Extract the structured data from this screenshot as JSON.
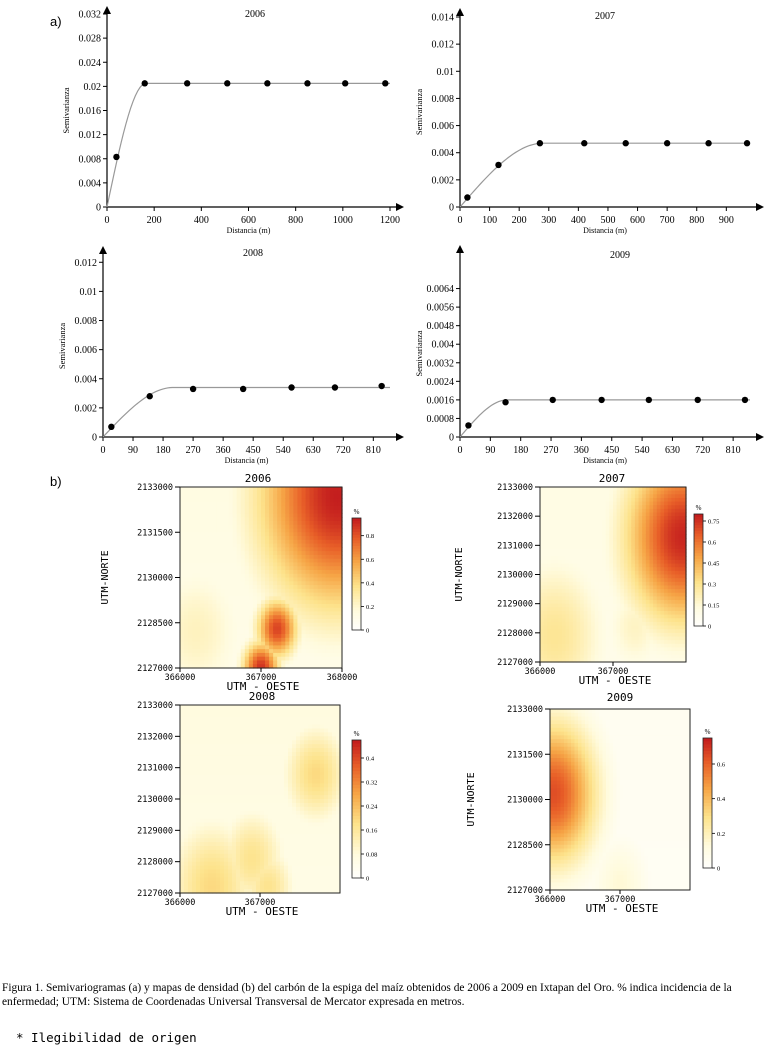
{
  "figure": {
    "panel_a": "a)",
    "panel_b": "b)",
    "caption": "Figura 1. Semivariogramas (a) y mapas de densidad (b) del carbón de la espiga del maíz obtenidos de 2006 a 2009 en Ixtapan del Oro. % indica incidencia de la enfermedad; UTM: Sistema de Coordenadas Universal Transversal de Mercator expresada en metros.",
    "note": "* Ilegibilidad de origen"
  },
  "chart_data": [
    {
      "type": "scatter",
      "title": "2006",
      "xlabel": "Distancia (m)",
      "ylabel": "Semivarianza",
      "xlim": [
        0,
        1200
      ],
      "ylim": [
        0,
        0.032
      ],
      "xticks": [
        "0",
        "200",
        "400",
        "600",
        "800",
        "1000",
        "1200"
      ],
      "yticks": [
        "0",
        "0.004",
        "0.008",
        "0.012",
        "0.016",
        "0.02",
        "0.024",
        "0.028",
        "0.032"
      ],
      "points": {
        "x": [
          40,
          160,
          340,
          510,
          680,
          850,
          1010,
          1180
        ],
        "y": [
          0.0083,
          0.0205,
          0.0205,
          0.0205,
          0.0205,
          0.0205,
          0.0205,
          0.0205
        ]
      },
      "model": {
        "nugget": 0,
        "sill": 0.0205,
        "range": 165
      }
    },
    {
      "type": "scatter",
      "title": "2007",
      "xlabel": "Distancia (m)",
      "ylabel": "Semivarianza",
      "xlim": [
        0,
        980
      ],
      "ylim": [
        0,
        0.014
      ],
      "xticks": [
        "0",
        "100",
        "200",
        "300",
        "400",
        "500",
        "600",
        "700",
        "800",
        "900"
      ],
      "yticks": [
        "0",
        "0.002",
        "0.004",
        "0.006",
        "0.008",
        "0.01",
        "0.012",
        "0.014"
      ],
      "points": {
        "x": [
          25,
          130,
          270,
          420,
          560,
          700,
          840,
          970
        ],
        "y": [
          0.0007,
          0.0031,
          0.0047,
          0.0047,
          0.0047,
          0.0047,
          0.0047,
          0.0047
        ]
      },
      "model": {
        "nugget": 0,
        "sill": 0.0047,
        "range": 280
      }
    },
    {
      "type": "scatter",
      "title": "2008",
      "xlabel": "Distancia (m)",
      "ylabel": "Semivarianza",
      "xlim": [
        0,
        860
      ],
      "ylim": [
        0,
        0.0125
      ],
      "xticks": [
        "0",
        "90",
        "180",
        "270",
        "360",
        "450",
        "540",
        "630",
        "720",
        "810"
      ],
      "yticks": [
        "0",
        "0.002",
        "0.004",
        "0.006",
        "0.008",
        "0.01",
        "0.012"
      ],
      "points": {
        "x": [
          25,
          140,
          270,
          420,
          565,
          695,
          835
        ],
        "y": [
          0.0007,
          0.0028,
          0.0033,
          0.0033,
          0.0034,
          0.0034,
          0.0035
        ]
      },
      "model": {
        "nugget": 0,
        "sill": 0.0034,
        "range": 210
      }
    },
    {
      "type": "scatter",
      "title": "2009",
      "xlabel": "Distancia (m)",
      "ylabel": "Semivarianza",
      "xlim": [
        0,
        860
      ],
      "ylim": [
        0,
        0.0072
      ],
      "xticks": [
        "0",
        "90",
        "180",
        "270",
        "360",
        "450",
        "540",
        "630",
        "720",
        "810"
      ],
      "yticks": [
        "0",
        "0.0008",
        "0.0016",
        "0.0024",
        "0.0032",
        "0.004",
        "0.0048",
        "0.0056",
        "0.0064"
      ],
      "points": {
        "x": [
          25,
          135,
          275,
          420,
          560,
          705,
          845
        ],
        "y": [
          0.0005,
          0.0015,
          0.0016,
          0.0016,
          0.0016,
          0.0016,
          0.0016
        ]
      },
      "model": {
        "nugget": 0,
        "sill": 0.0016,
        "range": 140
      }
    },
    {
      "type": "heatmap",
      "title": "2006",
      "xlabel": "UTM - OESTE",
      "ylabel": "UTM-NORTE",
      "xlim": [
        366000,
        368000
      ],
      "ylim": [
        2127000,
        2133000
      ],
      "xticks": [
        "366000",
        "367000",
        "368000"
      ],
      "yticks": [
        "2127000",
        "2128500",
        "2130000",
        "2131500",
        "2133000"
      ],
      "legend_title": "%",
      "legend_ticks": [
        "0",
        "0.2",
        "0.4",
        "0.6",
        "0.8"
      ],
      "legend_max": 0.95,
      "hotspots": [
        {
          "x": 367950,
          "y": 2132700,
          "value": 0.95,
          "spread": 0.35
        },
        {
          "x": 367000,
          "y": 2127000,
          "value": 0.9,
          "spread": 0.08
        },
        {
          "x": 367200,
          "y": 2128300,
          "value": 0.85,
          "spread": 0.09
        },
        {
          "x": 366200,
          "y": 2128200,
          "value": 0.25,
          "spread": 0.22
        }
      ],
      "background": 0.15
    },
    {
      "type": "heatmap",
      "title": "2007",
      "xlabel": "UTM - OESTE",
      "ylabel": "UTM-NORTE",
      "xlim": [
        366000,
        368000
      ],
      "ylim": [
        2127000,
        2133000
      ],
      "xticks": [
        "366000",
        "367000"
      ],
      "yticks": [
        "2127000",
        "2128000",
        "2129000",
        "2130000",
        "2131000",
        "2132000",
        "2133000"
      ],
      "legend_title": "%",
      "legend_ticks": [
        "0",
        "0.15",
        "0.3",
        "0.45",
        "0.6",
        "0.75"
      ],
      "legend_max": 0.8,
      "hotspots": [
        {
          "x": 367950,
          "y": 2131300,
          "value": 0.78,
          "spread": 0.28
        },
        {
          "x": 366200,
          "y": 2127900,
          "value": 0.3,
          "spread": 0.25
        },
        {
          "x": 367300,
          "y": 2128200,
          "value": 0.2,
          "spread": 0.15
        }
      ],
      "background": 0.12
    },
    {
      "type": "heatmap",
      "title": "2008",
      "xlabel": "UTM - OESTE",
      "ylabel": "",
      "xlim": [
        366000,
        368000
      ],
      "ylim": [
        2127000,
        2133000
      ],
      "xticks": [
        "366000",
        "367000"
      ],
      "yticks": [
        "2127000",
        "2128000",
        "2129000",
        "2130000",
        "2131000",
        "2132000",
        "2133000"
      ],
      "legend_title": "%",
      "legend_ticks": [
        "0",
        "0.08",
        "0.16",
        "0.24",
        "0.32",
        "0.4"
      ],
      "legend_max": 0.46,
      "hotspots": [
        {
          "x": 367700,
          "y": 2130800,
          "value": 0.2,
          "spread": 0.15
        },
        {
          "x": 366900,
          "y": 2128100,
          "value": 0.18,
          "spread": 0.15
        },
        {
          "x": 366400,
          "y": 2127200,
          "value": 0.2,
          "spread": 0.2
        },
        {
          "x": 367100,
          "y": 2127200,
          "value": 0.18,
          "spread": 0.12
        }
      ],
      "background": 0.08
    },
    {
      "type": "heatmap",
      "title": "2009",
      "xlabel": "UTM - OESTE",
      "ylabel": "UTM-NORTE",
      "xlim": [
        366000,
        368000
      ],
      "ylim": [
        2127000,
        2133000
      ],
      "xticks": [
        "366000",
        "367000"
      ],
      "yticks": [
        "2127000",
        "2128500",
        "2130000",
        "2131500",
        "2133000"
      ],
      "legend_title": "%",
      "legend_ticks": [
        "0",
        "0.2",
        "0.4",
        "0.6"
      ],
      "legend_max": 0.75,
      "hotspots": [
        {
          "x": 366050,
          "y": 2130200,
          "value": 0.65,
          "spread": 0.22
        },
        {
          "x": 367000,
          "y": 2127200,
          "value": 0.15,
          "spread": 0.15
        }
      ],
      "background": 0.06
    }
  ]
}
